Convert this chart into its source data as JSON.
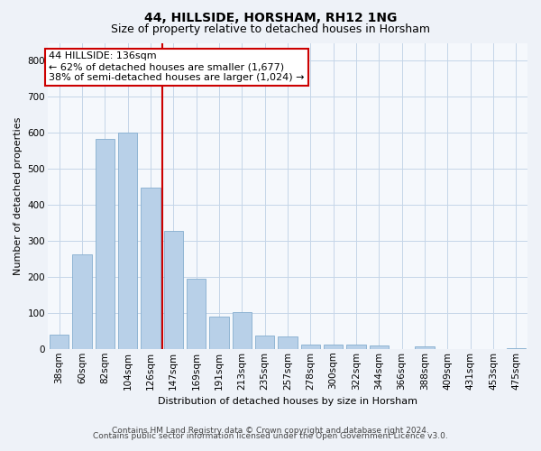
{
  "title": "44, HILLSIDE, HORSHAM, RH12 1NG",
  "subtitle": "Size of property relative to detached houses in Horsham",
  "xlabel": "Distribution of detached houses by size in Horsham",
  "ylabel": "Number of detached properties",
  "bar_labels": [
    "38sqm",
    "60sqm",
    "82sqm",
    "104sqm",
    "126sqm",
    "147sqm",
    "169sqm",
    "191sqm",
    "213sqm",
    "235sqm",
    "257sqm",
    "278sqm",
    "300sqm",
    "322sqm",
    "344sqm",
    "366sqm",
    "388sqm",
    "409sqm",
    "431sqm",
    "453sqm",
    "475sqm"
  ],
  "bar_values": [
    40,
    262,
    582,
    600,
    447,
    327,
    195,
    90,
    101,
    37,
    35,
    12,
    13,
    12,
    10,
    0,
    8,
    0,
    0,
    0,
    3
  ],
  "bar_color": "#b8d0e8",
  "bar_edge_color": "#85aecf",
  "vline_x_idx": 4,
  "vline_color": "#cc0000",
  "annotation_line1": "44 HILLSIDE: 136sqm",
  "annotation_line2": "← 62% of detached houses are smaller (1,677)",
  "annotation_line3": "38% of semi-detached houses are larger (1,024) →",
  "annotation_box_color": "#ffffff",
  "annotation_box_edge": "#cc0000",
  "ylim": [
    0,
    850
  ],
  "yticks": [
    0,
    100,
    200,
    300,
    400,
    500,
    600,
    700,
    800
  ],
  "bg_color": "#eef2f8",
  "plot_bg_color": "#f5f8fc",
  "grid_color": "#c5d5e8",
  "footer_line1": "Contains HM Land Registry data © Crown copyright and database right 2024.",
  "footer_line2": "Contains public sector information licensed under the Open Government Licence v3.0.",
  "title_fontsize": 10,
  "subtitle_fontsize": 9,
  "axis_label_fontsize": 8,
  "tick_fontsize": 7.5,
  "footer_fontsize": 6.5,
  "annotation_fontsize": 8
}
